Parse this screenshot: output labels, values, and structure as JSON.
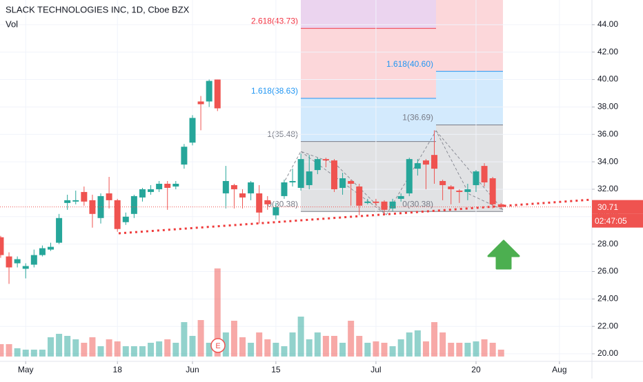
{
  "chart_data": {
    "type": "candlestick",
    "title": "SLACK TECHNOLOGIES INC, 1D, Cboe BZX",
    "volume_label": "Vol",
    "up_color": "#26a69a",
    "down_color": "#ef5350",
    "open": [
      28.5,
      27.1,
      26.6,
      26.2,
      26.5,
      27.2,
      27.6,
      28.1,
      31.0,
      31.1,
      31.8,
      31.2,
      29.9,
      31.7,
      31.2,
      29.6,
      30.2,
      31.4,
      31.8,
      32.0,
      32.4,
      32.2,
      33.8,
      35.4,
      38.4,
      38.4,
      40.0,
      31.7,
      32.3,
      31.7,
      31.7,
      31.7,
      31.2,
      30.1,
      31.5,
      32.5,
      32.1,
      32.3,
      33.4,
      34.2,
      34.1,
      32.1,
      32.6,
      32.2,
      31.0,
      31.1,
      31.1,
      30.6,
      31.3,
      31.7,
      33.5,
      34.1,
      34.5,
      32.6,
      32.2,
      31.9,
      31.8,
      32.3,
      33.7,
      32.8,
      30.9
    ],
    "high": [
      28.6,
      27.4,
      27.1,
      26.6,
      27.6,
      27.9,
      28.1,
      30.2,
      31.6,
      31.9,
      32.2,
      31.6,
      31.7,
      32.9,
      31.3,
      30.3,
      31.6,
      32.1,
      32.3,
      32.6,
      32.6,
      32.6,
      35.3,
      37.4,
      38.8,
      40.0,
      40.0,
      33.7,
      32.4,
      32.0,
      32.6,
      32.3,
      31.5,
      31.0,
      32.7,
      33.5,
      34.6,
      34.5,
      34.3,
      34.3,
      34.2,
      33.2,
      32.7,
      32.4,
      31.3,
      31.3,
      31.2,
      31.3,
      31.7,
      34.3,
      34.2,
      34.2,
      36.3,
      32.7,
      32.3,
      32.0,
      32.4,
      33.4,
      33.9,
      32.9,
      31.0
    ],
    "low": [
      27.0,
      25.1,
      26.3,
      25.5,
      26.3,
      27.1,
      27.5,
      28.0,
      30.5,
      30.9,
      30.8,
      29.2,
      29.5,
      30.6,
      28.9,
      29.4,
      29.9,
      31.1,
      31.6,
      31.8,
      30.5,
      32.0,
      33.5,
      35.2,
      36.3,
      38.0,
      37.7,
      30.6,
      30.6,
      30.6,
      31.2,
      29.5,
      30.5,
      29.8,
      31.3,
      32.2,
      31.9,
      32.0,
      33.1,
      33.6,
      31.8,
      31.6,
      30.8,
      30.1,
      30.9,
      30.8,
      30.2,
      30.4,
      31.1,
      31.5,
      33.0,
      32.0,
      32.4,
      31.2,
      30.9,
      31.0,
      31.2,
      31.8,
      32.2,
      30.6,
      30.6
    ],
    "close": [
      27.2,
      26.3,
      26.9,
      26.4,
      27.2,
      27.7,
      27.8,
      29.9,
      31.2,
      31.2,
      31.1,
      30.2,
      31.5,
      31.2,
      29.1,
      30.0,
      31.5,
      32.0,
      32.0,
      32.4,
      32.1,
      32.4,
      35.1,
      37.2,
      38.2,
      39.9,
      37.9,
      32.6,
      32.0,
      31.4,
      32.5,
      30.3,
      30.9,
      30.7,
      32.5,
      32.6,
      34.2,
      33.3,
      34.2,
      34.1,
      32.0,
      32.8,
      32.4,
      30.8,
      31.1,
      31.0,
      30.5,
      31.1,
      31.5,
      34.2,
      33.9,
      33.8,
      33.5,
      32.3,
      32.0,
      31.8,
      32.0,
      33.3,
      32.5,
      30.9,
      30.71
    ],
    "volume": [
      9,
      9,
      6,
      5,
      5,
      5,
      14,
      16.5,
      15,
      12.5,
      10,
      14,
      7.5,
      12.5,
      11,
      7.5,
      7.5,
      7.5,
      10,
      11,
      12.5,
      10,
      25,
      15,
      26.5,
      10,
      64,
      17.5,
      26,
      14,
      10,
      17.5,
      12.5,
      10,
      7.5,
      17.5,
      29,
      12.5,
      17.5,
      15,
      15,
      10,
      26,
      15,
      10,
      11,
      10,
      7.5,
      12.5,
      17.5,
      19,
      11,
      25,
      17.5,
      10,
      10,
      10,
      11,
      12.5,
      10,
      5
    ],
    "ylim": [
      19.45,
      45.8
    ],
    "yticks": [
      {
        "value": 20,
        "label": "20.00"
      },
      {
        "value": 22,
        "label": "22.00"
      },
      {
        "value": 24,
        "label": "24.00"
      },
      {
        "value": 26,
        "label": "26.00"
      },
      {
        "value": 28,
        "label": "28.00"
      },
      {
        "value": 30,
        "label": "30.00"
      },
      {
        "value": 32,
        "label": "32.00"
      },
      {
        "value": 34,
        "label": "34.00"
      },
      {
        "value": 36,
        "label": "36.00"
      },
      {
        "value": 38,
        "label": "38.00"
      },
      {
        "value": 40,
        "label": "40.00"
      },
      {
        "value": 42,
        "label": "42.00"
      },
      {
        "value": 44,
        "label": "44.00"
      }
    ],
    "xlim": [
      -0.08,
      70.9
    ],
    "xticks": [
      {
        "value": 3,
        "label": "May"
      },
      {
        "value": 14,
        "label": "18"
      },
      {
        "value": 23,
        "label": "Jun"
      },
      {
        "value": 33,
        "label": "15"
      },
      {
        "value": 45,
        "label": "Jul"
      },
      {
        "value": 57,
        "label": "20"
      },
      {
        "value": 67,
        "label": "Aug"
      }
    ],
    "grid": true,
    "last_price": 30.71,
    "countdown": "02:47:05",
    "earnings_badge": "E",
    "fib_extensions": [
      {
        "levels": [
          {
            "value": 30.38,
            "label": "0(30.38)"
          },
          {
            "value": 35.48,
            "label": "1(35.48)"
          },
          {
            "value": 38.63,
            "label": "1.618(38.63)"
          },
          {
            "value": 43.73,
            "label": "2.618(43.73)"
          }
        ]
      },
      {
        "levels": [
          {
            "value": 30.38,
            "label": "0(30.38)"
          },
          {
            "value": 36.69,
            "label": "1(36.69)"
          },
          {
            "value": 40.6,
            "label": "1.618(40.60)"
          }
        ]
      }
    ]
  }
}
